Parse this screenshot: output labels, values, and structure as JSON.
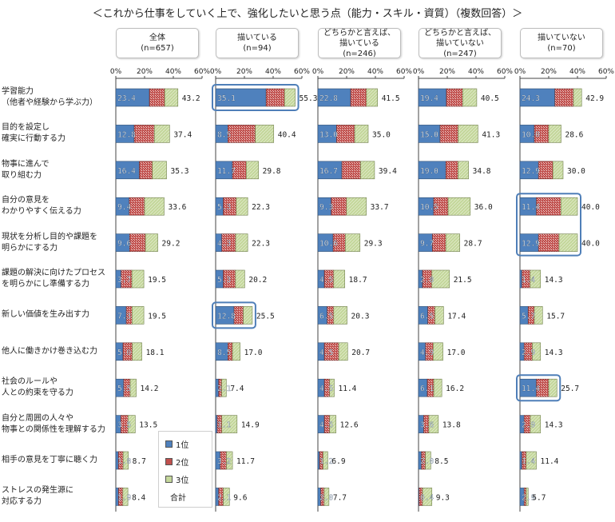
{
  "title": "＜これから仕事をしていく上で、強化したいと思う点（能力・スキル・資質）（複数回答）＞",
  "chart_data": {
    "type": "bar",
    "stacked": true,
    "x_ticks": [
      "0%",
      "20%",
      "40%",
      "60%"
    ],
    "xlim": [
      0,
      60
    ],
    "categories": [
      "学習能力\n（他者や経験から学ぶ力）",
      "目的を設定し\n確実に行動する力",
      "物事に進んで\n取り組む力",
      "自分の意見を\nわかりやすく伝える力",
      "現状を分析し目的や課題を\n明らかにする力",
      "課題の解決に向けたプロセス\nを明らかにし準備する力",
      "新しい価値を生み出す力",
      "他人に働きかけ巻き込む力",
      "社会のルールや\n人との約束を守る力",
      "自分と周囲の人々や\n物事との関係性を理解する力",
      "相手の意見を丁寧に聴く力",
      "ストレスの発生源に\n対応する力"
    ],
    "legend": [
      {
        "label": "1位",
        "color": "#4f81bd"
      },
      {
        "label": "2位",
        "color": "#c0504d"
      },
      {
        "label": "3位",
        "color": "#c4d79b"
      },
      {
        "label": "合計"
      }
    ],
    "panels": [
      {
        "name": "全体",
        "n": "(n=657)",
        "first": [
          23.4,
          12.8,
          16.4,
          9.4,
          9.6,
          3.7,
          7.3,
          5.0,
          5.5,
          3.5,
          1.8,
          1.9
        ],
        "second": [
          10.6,
          14.0,
          9.0,
          10.6,
          11.0,
          7.5,
          4.0,
          6.5,
          4.5,
          5.0,
          3.3,
          3.0
        ],
        "total": [
          43.2,
          37.4,
          35.3,
          33.6,
          29.2,
          19.5,
          19.5,
          18.1,
          14.2,
          13.5,
          8.7,
          8.4
        ]
      },
      {
        "name": "描いている",
        "n": "(n=94)",
        "first": [
          35.1,
          8.5,
          11.7,
          5.3,
          4.3,
          5.3,
          12.8,
          8.5,
          2.1,
          1.1,
          3.2,
          2.1
        ],
        "second": [
          12.8,
          19.1,
          9.6,
          9.0,
          9.6,
          8.5,
          6.4,
          3.2,
          2.1,
          3.2,
          4.3,
          3.2
        ],
        "total": [
          55.3,
          40.4,
          29.8,
          22.3,
          22.3,
          20.2,
          25.5,
          17.0,
          7.4,
          14.9,
          11.7,
          9.6
        ]
      },
      {
        "name": "どちらかと言えば、\n描いている",
        "n": "(n=246)",
        "first": [
          22.8,
          13.0,
          16.7,
          9.3,
          10.6,
          4.5,
          6.5,
          4.5,
          4.5,
          4.5,
          1.2,
          2.0
        ],
        "second": [
          11.0,
          12.6,
          13.0,
          10.6,
          8.5,
          6.5,
          4.5,
          10.0,
          3.7,
          3.7,
          2.4,
          2.4
        ],
        "total": [
          41.5,
          35.0,
          39.4,
          33.7,
          29.3,
          18.7,
          20.3,
          20.7,
          11.4,
          12.6,
          6.9,
          7.7
        ]
      },
      {
        "name": "どちらかと言えば、\n描いていない",
        "n": "(n=247)",
        "first": [
          19.4,
          15.0,
          19.0,
          10.5,
          9.7,
          2.8,
          6.5,
          4.9,
          6.1,
          3.6,
          2.0,
          0.4
        ],
        "second": [
          11.3,
          12.6,
          8.5,
          10.1,
          9.3,
          6.5,
          4.9,
          5.3,
          4.5,
          3.6,
          2.8,
          2.4
        ],
        "total": [
          40.5,
          41.3,
          34.8,
          36.0,
          28.7,
          21.5,
          17.4,
          17.0,
          16.2,
          13.8,
          8.5,
          9.3
        ]
      },
      {
        "name": "描いていない",
        "n": "(n=70)",
        "first": [
          24.3,
          10.0,
          12.9,
          11.4,
          12.9,
          1.4,
          5.7,
          2.9,
          11.4,
          2.9,
          1.4,
          2.9
        ],
        "second": [
          12.9,
          10.0,
          10.0,
          17.1,
          14.3,
          5.7,
          4.3,
          5.7,
          8.6,
          4.3,
          2.9,
          1.4
        ],
        "total": [
          42.9,
          28.6,
          30.0,
          40.0,
          40.0,
          14.3,
          15.7,
          14.3,
          25.7,
          14.3,
          11.4,
          5.7
        ]
      }
    ],
    "highlights": [
      {
        "panel": 1,
        "rows": [
          0
        ]
      },
      {
        "panel": 1,
        "rows": [
          6
        ]
      },
      {
        "panel": 4,
        "rows": [
          3,
          4
        ]
      },
      {
        "panel": 4,
        "rows": [
          8
        ]
      }
    ]
  }
}
